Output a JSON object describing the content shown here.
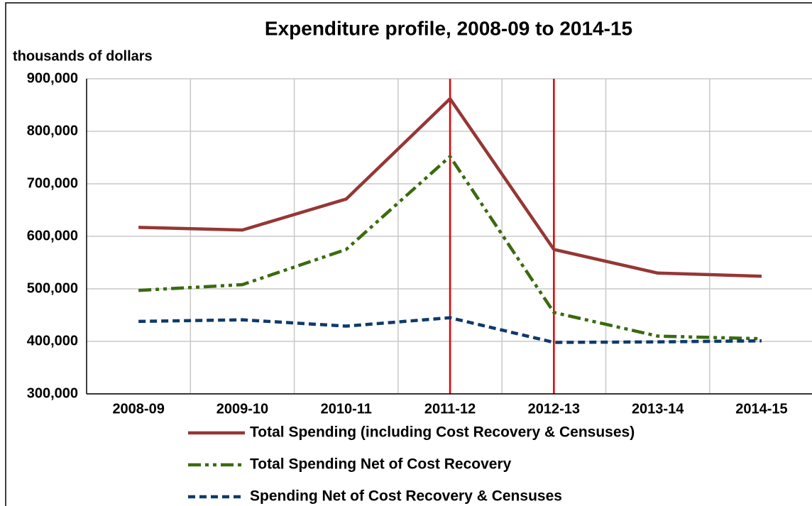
{
  "chart_data": {
    "type": "line",
    "title": "Expenditure profile, 2008-09 to 2014-15",
    "y_axis_label": "thousands of dollars",
    "categories": [
      "2008-09",
      "2009-10",
      "2010-11",
      "2011-12",
      "2012-13",
      "2013-14",
      "2014-15"
    ],
    "series": [
      {
        "name": "Total Spending (including Cost Recovery & Censuses)",
        "color": "#953735",
        "style": "solid",
        "values": [
          617000,
          612000,
          671000,
          862000,
          575000,
          530000,
          524000
        ]
      },
      {
        "name": "Total Spending Net of Cost Recovery",
        "color": "#3a6b0e",
        "style": "dash-dot-dot",
        "values": [
          497000,
          508000,
          575000,
          752000,
          455000,
          410000,
          405000
        ]
      },
      {
        "name": "Spending Net of Cost Recovery & Censuses",
        "color": "#0e3a6b",
        "style": "dash",
        "values": [
          438000,
          441000,
          429000,
          445000,
          398000,
          399000,
          401000
        ]
      }
    ],
    "ylim": [
      300000,
      900000
    ],
    "yticks": [
      {
        "value": 300000,
        "label": "300,000"
      },
      {
        "value": 400000,
        "label": "400,000"
      },
      {
        "value": 500000,
        "label": "500,000"
      },
      {
        "value": 600000,
        "label": "600,000"
      },
      {
        "value": 700000,
        "label": "700,000"
      },
      {
        "value": 800000,
        "label": "800,000"
      },
      {
        "value": 900000,
        "label": "900,000"
      }
    ],
    "grid": true,
    "vertical_markers": {
      "color": "#e00000",
      "positions": [
        3.5,
        4.5
      ]
    },
    "legend": "bottom"
  }
}
